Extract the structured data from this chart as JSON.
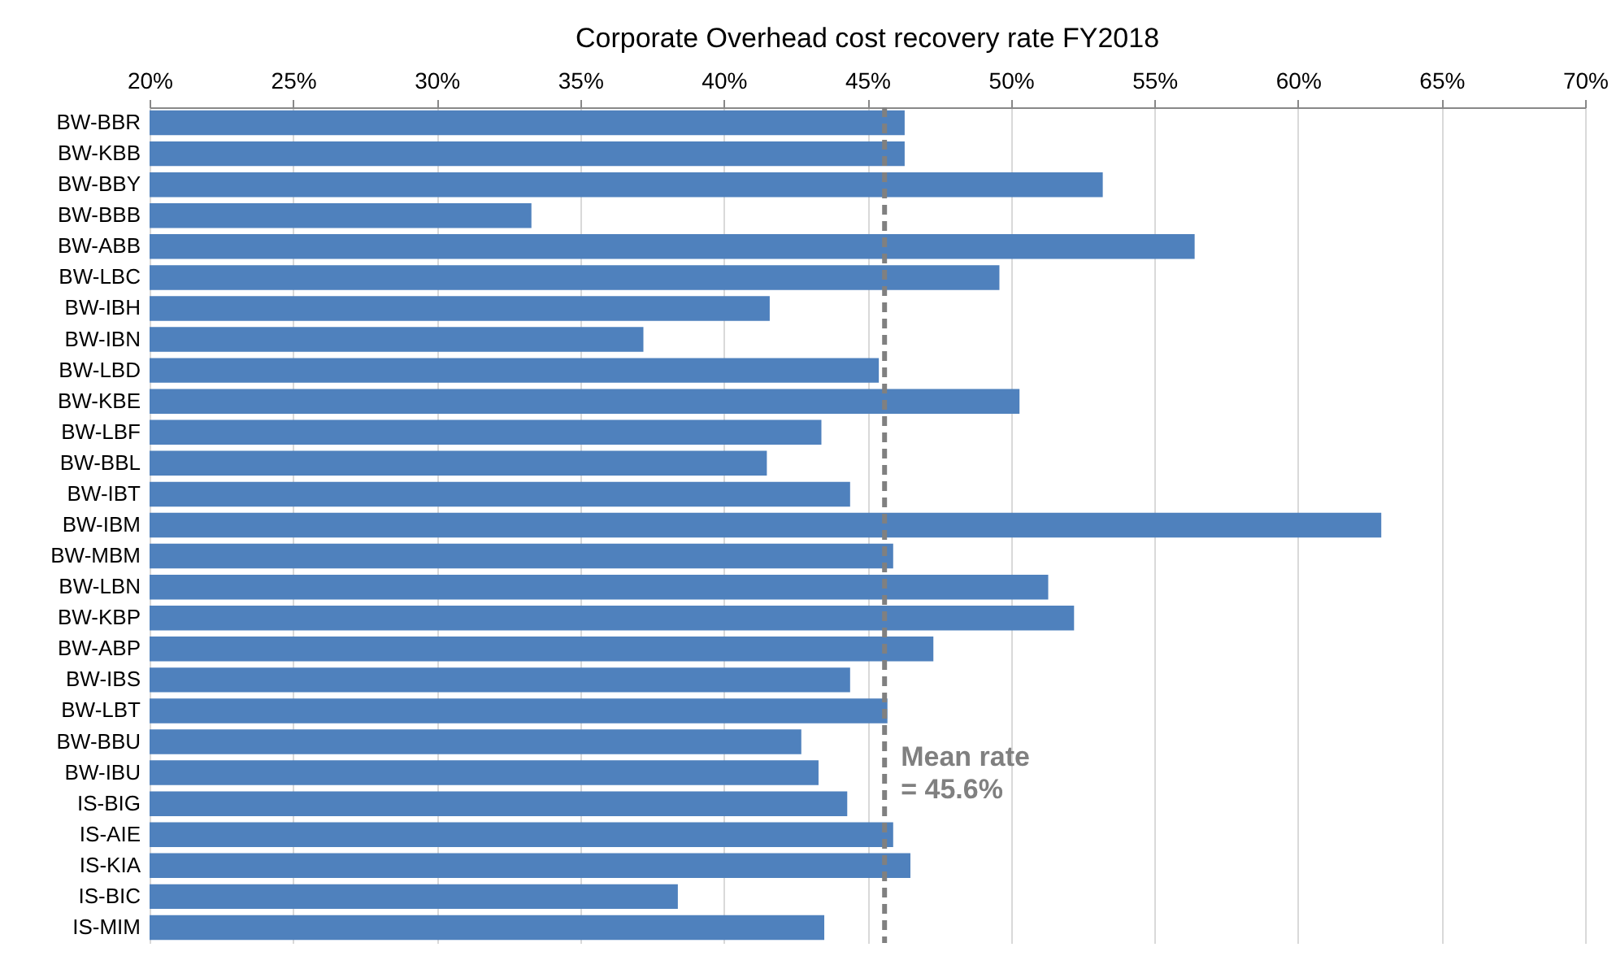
{
  "chart_data": {
    "type": "bar",
    "orientation": "horizontal",
    "title": "Corporate Overhead cost recovery rate FY2018",
    "categories": [
      "BW-BBR",
      "BW-KBB",
      "BW-BBY",
      "BW-BBB",
      "BW-ABB",
      "BW-LBC",
      "BW-IBH",
      "BW-IBN",
      "BW-LBD",
      "BW-KBE",
      "BW-LBF",
      "BW-BBL",
      "BW-IBT",
      "BW-IBM",
      "BW-MBM",
      "BW-LBN",
      "BW-KBP",
      "BW-ABP",
      "BW-IBS",
      "BW-LBT",
      "BW-BBU",
      "BW-IBU",
      "IS-BIG",
      "IS-AIE",
      "IS-KIA",
      "IS-BIC",
      "IS-MIM"
    ],
    "values": [
      46.3,
      46.3,
      53.2,
      33.3,
      56.4,
      49.6,
      41.6,
      37.2,
      45.4,
      50.3,
      43.4,
      41.5,
      44.4,
      62.9,
      45.9,
      51.3,
      52.2,
      47.3,
      44.4,
      45.7,
      42.7,
      43.3,
      44.3,
      45.9,
      46.5,
      38.4,
      43.5
    ],
    "color": "#4f81bd",
    "xlim": [
      20,
      70
    ],
    "xticks": [
      {
        "value": 20,
        "label": "20%"
      },
      {
        "value": 25,
        "label": "25%"
      },
      {
        "value": 30,
        "label": "30%"
      },
      {
        "value": 35,
        "label": "35%"
      },
      {
        "value": 40,
        "label": "40%"
      },
      {
        "value": 45,
        "label": "45%"
      },
      {
        "value": 50,
        "label": "50%"
      },
      {
        "value": 55,
        "label": "55%"
      },
      {
        "value": 60,
        "label": "60%"
      },
      {
        "value": 65,
        "label": "65%"
      },
      {
        "value": 70,
        "label": "70%"
      }
    ],
    "grid": "x",
    "ref_lines": [
      {
        "axis": "x",
        "value": 45.6,
        "label": "Mean rate\n= 45.6%",
        "color": "#808080",
        "line_style": "dashed"
      }
    ]
  }
}
